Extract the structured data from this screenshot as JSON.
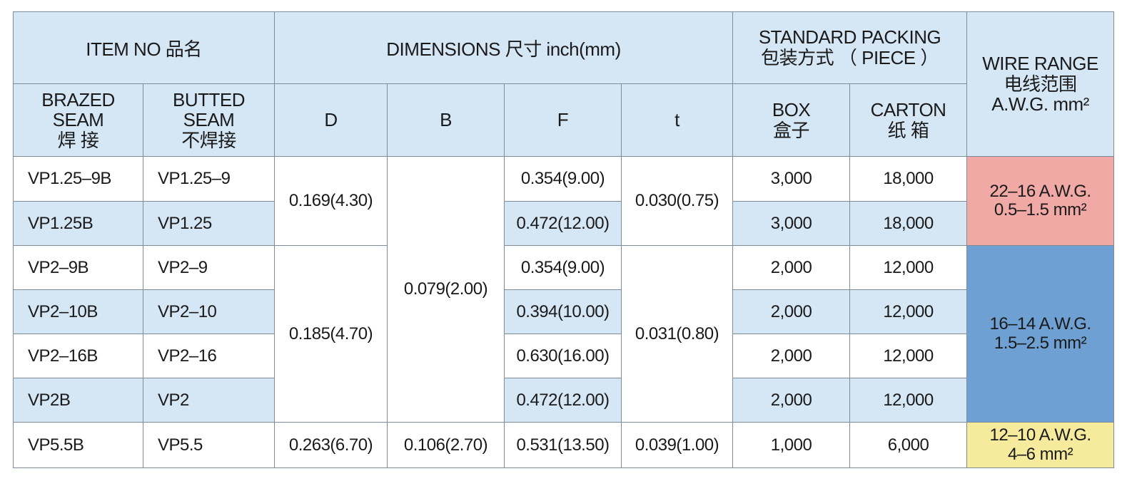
{
  "header": {
    "item_no": "ITEM NO 品名",
    "dimensions": "DIMENSIONS 尺寸  inch(mm)",
    "standard_packing": [
      "STANDARD PACKING",
      "包装方式 （ PIECE ）"
    ],
    "wire_range": [
      "WIRE RANGE",
      "电线范围",
      "A.W.G.  mm²"
    ]
  },
  "subheader": {
    "brazed": [
      "BRAZED",
      "SEAM",
      "焊  接"
    ],
    "butted": [
      "BUTTED",
      "SEAM",
      "不焊接"
    ],
    "d": "D",
    "b": "B",
    "f": "F",
    "t": "t",
    "box": [
      "BOX",
      "盒子"
    ],
    "carton": [
      "CARTON",
      "纸  箱"
    ]
  },
  "rows": [
    {
      "brazed": "VP1.25–9B",
      "butted": "VP1.25–9",
      "d": "0.169(4.30)",
      "b": "0.079(2.00)",
      "f": "0.354(9.00)",
      "t": "0.030(0.75)",
      "box": "3,000",
      "carton": "18,000",
      "wire_range": [
        "22–16 A.W.G.",
        "0.5–1.5  mm²"
      ]
    },
    {
      "brazed": "VP1.25B",
      "butted": "VP1.25",
      "f": "0.472(12.00)",
      "box": "3,000",
      "carton": "18,000"
    },
    {
      "brazed": "VP2–9B",
      "butted": "VP2–9",
      "d": "0.185(4.70)",
      "f": "0.354(9.00)",
      "t": "0.031(0.80)",
      "box": "2,000",
      "carton": "12,000",
      "wire_range": [
        "16–14 A.W.G.",
        "1.5–2.5  mm²"
      ]
    },
    {
      "brazed": "VP2–10B",
      "butted": "VP2–10",
      "f": "0.394(10.00)",
      "box": "2,000",
      "carton": "12,000"
    },
    {
      "brazed": "VP2–16B",
      "butted": "VP2–16",
      "f": "0.630(16.00)",
      "box": "2,000",
      "carton": "12,000"
    },
    {
      "brazed": "VP2B",
      "butted": "VP2",
      "f": "0.472(12.00)",
      "box": "2,000",
      "carton": "12,000"
    },
    {
      "brazed": "VP5.5B",
      "butted": "VP5.5",
      "d": "0.263(6.70)",
      "b": "0.106(2.70)",
      "f": "0.531(13.50)",
      "t": "0.039(1.00)",
      "box": "1,000",
      "carton": "6,000",
      "wire_range": [
        "12–10 A.W.G.",
        "4–6  mm²"
      ]
    }
  ]
}
